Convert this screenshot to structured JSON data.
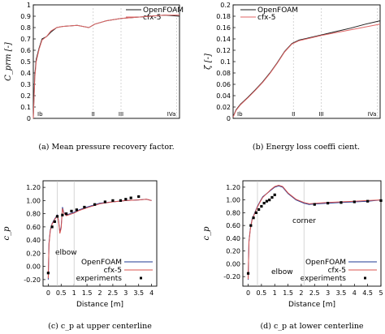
{
  "chart_data": [
    {
      "type": "line",
      "caption": "(a) Mean pressure recovery factor.",
      "ylabel": "C_prm [-]",
      "ylim": [
        0,
        1
      ],
      "yticks": [
        "0",
        "0.1",
        "0.2",
        "0.3",
        "0.4",
        "0.5",
        "0.6",
        "0.7",
        "0.8",
        "0.9",
        "1"
      ],
      "xlim": [
        0,
        1
      ],
      "sections": [
        {
          "label": "Ib",
          "x": 0.0
        },
        {
          "label": "II",
          "x": 0.41
        },
        {
          "label": "III",
          "x": 0.6
        },
        {
          "label": "IVa",
          "x": 0.98
        }
      ],
      "legend": [
        "OpenFOAM",
        "cfx-5"
      ],
      "series": [
        {
          "name": "OpenFOAM",
          "color": "#1a1a1a",
          "x": [
            0,
            0.01,
            0.02,
            0.04,
            0.06,
            0.09,
            0.12,
            0.16,
            0.2,
            0.3,
            0.38,
            0.42,
            0.5,
            0.6,
            0.7,
            0.8,
            0.9,
            1.0
          ],
          "y": [
            0.0,
            0.38,
            0.52,
            0.62,
            0.7,
            0.72,
            0.76,
            0.8,
            0.81,
            0.82,
            0.8,
            0.83,
            0.86,
            0.88,
            0.89,
            0.9,
            0.91,
            0.9
          ]
        },
        {
          "name": "cfx-5",
          "color": "#e06666",
          "x": [
            0,
            0.01,
            0.02,
            0.04,
            0.06,
            0.09,
            0.12,
            0.16,
            0.2,
            0.3,
            0.38,
            0.42,
            0.5,
            0.6,
            0.7,
            0.8,
            0.9,
            1.0
          ],
          "y": [
            0.0,
            0.35,
            0.5,
            0.61,
            0.69,
            0.72,
            0.77,
            0.8,
            0.81,
            0.82,
            0.8,
            0.83,
            0.86,
            0.88,
            0.89,
            0.9,
            0.91,
            0.91
          ]
        }
      ]
    },
    {
      "type": "line",
      "caption": "(b) Energy loss coeffi cient.",
      "ylabel": "ζ [-]",
      "ylim": [
        0,
        0.2
      ],
      "yticks": [
        "0",
        "0.02",
        "0.04",
        "0.06",
        "0.08",
        "0.1",
        "0.12",
        "0.14",
        "0.16",
        "0.18",
        "0.2"
      ],
      "xlim": [
        0,
        1
      ],
      "sections": [
        {
          "label": "Ib",
          "x": 0.0
        },
        {
          "label": "II",
          "x": 0.41
        },
        {
          "label": "III",
          "x": 0.6
        },
        {
          "label": "IVa",
          "x": 0.98
        }
      ],
      "legend": [
        "OpenFOAM",
        "cfx-5"
      ],
      "series": [
        {
          "name": "OpenFOAM",
          "color": "#1a1a1a",
          "x": [
            0,
            0.02,
            0.05,
            0.1,
            0.15,
            0.2,
            0.25,
            0.3,
            0.35,
            0.4,
            0.45,
            0.5,
            0.6,
            0.7,
            0.8,
            0.9,
            1.0
          ],
          "y": [
            0.003,
            0.015,
            0.025,
            0.037,
            0.05,
            0.064,
            0.08,
            0.098,
            0.118,
            0.132,
            0.138,
            0.141,
            0.147,
            0.153,
            0.159,
            0.166,
            0.172
          ]
        },
        {
          "name": "cfx-5",
          "color": "#e06666",
          "x": [
            0,
            0.02,
            0.05,
            0.1,
            0.15,
            0.2,
            0.25,
            0.3,
            0.35,
            0.4,
            0.45,
            0.5,
            0.6,
            0.7,
            0.8,
            0.9,
            1.0
          ],
          "y": [
            0.002,
            0.014,
            0.024,
            0.036,
            0.049,
            0.063,
            0.079,
            0.097,
            0.117,
            0.131,
            0.137,
            0.14,
            0.146,
            0.151,
            0.156,
            0.161,
            0.166
          ]
        }
      ]
    },
    {
      "type": "line",
      "caption": "(c) c_p at upper centerline",
      "xlabel": "Distance [m]",
      "ylabel": "c_p",
      "xlim": [
        -0.2,
        4.2
      ],
      "ylim": [
        -0.3,
        1.3
      ],
      "xticks": [
        0,
        0.5,
        1,
        1.5,
        2,
        2.5,
        3,
        3.5,
        4
      ],
      "yticks": [
        -0.2,
        0,
        0.2,
        0.4,
        0.6,
        0.8,
        1.0,
        1.2
      ],
      "ytick_labels": [
        "-0.20",
        "0.00",
        "0.20",
        "0.40",
        "0.60",
        "0.80",
        "1.00",
        "1.20"
      ],
      "vlines": [
        0.35,
        1.0
      ],
      "annotations": [
        {
          "text": "elbow"
        }
      ],
      "legend": [
        "OpenFOAM",
        "cfx-5",
        "experiments"
      ],
      "series": [
        {
          "name": "OpenFOAM",
          "color": "#1f3a93",
          "x": [
            0,
            0.03,
            0.08,
            0.15,
            0.25,
            0.35,
            0.4,
            0.45,
            0.5,
            0.55,
            0.6,
            0.7,
            0.85,
            1.0,
            1.2,
            1.5,
            2.0,
            2.5,
            3.0,
            3.5,
            3.8,
            4.0
          ],
          "y": [
            -0.2,
            0.35,
            0.55,
            0.65,
            0.72,
            0.78,
            0.7,
            0.52,
            0.6,
            0.9,
            0.82,
            0.78,
            0.8,
            0.82,
            0.86,
            0.9,
            0.96,
            0.98,
            1.0,
            1.01,
            1.02,
            1.0
          ]
        },
        {
          "name": "cfx-5",
          "color": "#d9534f",
          "x": [
            0,
            0.03,
            0.08,
            0.15,
            0.25,
            0.35,
            0.4,
            0.45,
            0.5,
            0.55,
            0.6,
            0.7,
            0.85,
            1.0,
            1.2,
            1.5,
            2.0,
            2.5,
            3.0,
            3.5,
            3.8,
            4.0
          ],
          "y": [
            -0.18,
            0.33,
            0.54,
            0.64,
            0.71,
            0.77,
            0.69,
            0.5,
            0.58,
            0.88,
            0.81,
            0.77,
            0.79,
            0.81,
            0.85,
            0.89,
            0.95,
            0.98,
            1.0,
            1.01,
            1.02,
            1.0
          ]
        },
        {
          "name": "experiments",
          "marker": "square",
          "x": [
            0.0,
            0.15,
            0.25,
            0.35,
            0.55,
            0.7,
            0.9,
            1.1,
            1.4,
            1.8,
            2.2,
            2.5,
            2.8,
            3.0,
            3.2,
            3.5
          ],
          "y": [
            -0.1,
            0.6,
            0.68,
            0.76,
            0.78,
            0.8,
            0.84,
            0.86,
            0.9,
            0.94,
            0.98,
            1.0,
            1.0,
            1.02,
            1.04,
            1.06
          ]
        }
      ]
    },
    {
      "type": "line",
      "caption": "(d) c_p at lower centerline",
      "xlabel": "Distance [m]",
      "ylabel": "c_p",
      "xlim": [
        -0.2,
        5.0
      ],
      "ylim": [
        -0.35,
        1.3
      ],
      "xticks": [
        0,
        0.5,
        1,
        1.5,
        2,
        2.5,
        3,
        3.5,
        4,
        4.5,
        5
      ],
      "yticks": [
        -0.2,
        0,
        0.2,
        0.4,
        0.6,
        0.8,
        1.0,
        1.2
      ],
      "ytick_labels": [
        "-0.20",
        "0.00",
        "0.20",
        "0.40",
        "0.60",
        "0.80",
        "1.00",
        "1.20"
      ],
      "vlines": [
        0.35,
        2.1
      ],
      "annotations": [
        {
          "text": "corner"
        },
        {
          "text": "elbow"
        }
      ],
      "legend": [
        "OpenFOAM",
        "cfx-5",
        "experiments"
      ],
      "series": [
        {
          "name": "OpenFOAM",
          "color": "#1f3a93",
          "x": [
            0,
            0.03,
            0.08,
            0.15,
            0.25,
            0.35,
            0.45,
            0.55,
            0.7,
            0.85,
            1.0,
            1.15,
            1.3,
            1.5,
            1.8,
            2.1,
            2.3,
            2.6,
            3.0,
            3.5,
            4.0,
            4.5,
            5.0
          ],
          "y": [
            -0.25,
            0.35,
            0.55,
            0.7,
            0.8,
            0.9,
            0.98,
            1.05,
            1.1,
            1.15,
            1.2,
            1.22,
            1.2,
            1.1,
            1.0,
            0.95,
            0.93,
            0.94,
            0.95,
            0.96,
            0.97,
            0.98,
            1.0
          ]
        },
        {
          "name": "cfx-5",
          "color": "#d9534f",
          "x": [
            0,
            0.03,
            0.08,
            0.15,
            0.25,
            0.35,
            0.45,
            0.55,
            0.7,
            0.85,
            1.0,
            1.15,
            1.3,
            1.5,
            1.8,
            2.1,
            2.3,
            2.6,
            3.0,
            3.5,
            4.0,
            4.5,
            5.0
          ],
          "y": [
            -0.24,
            0.34,
            0.54,
            0.69,
            0.79,
            0.89,
            0.97,
            1.04,
            1.1,
            1.16,
            1.21,
            1.23,
            1.21,
            1.11,
            1.01,
            0.96,
            0.94,
            0.95,
            0.96,
            0.97,
            0.98,
            0.99,
            1.0
          ]
        },
        {
          "name": "experiments",
          "marker": "square",
          "x": [
            0.0,
            0.1,
            0.2,
            0.3,
            0.4,
            0.5,
            0.6,
            0.7,
            0.8,
            0.9,
            1.0,
            2.5,
            3.0,
            3.5,
            4.0,
            4.5,
            5.0
          ],
          "y": [
            -0.15,
            0.6,
            0.72,
            0.8,
            0.85,
            0.9,
            0.95,
            0.98,
            1.0,
            1.04,
            1.08,
            0.93,
            0.95,
            0.96,
            0.97,
            0.98,
            0.99
          ]
        }
      ]
    }
  ]
}
